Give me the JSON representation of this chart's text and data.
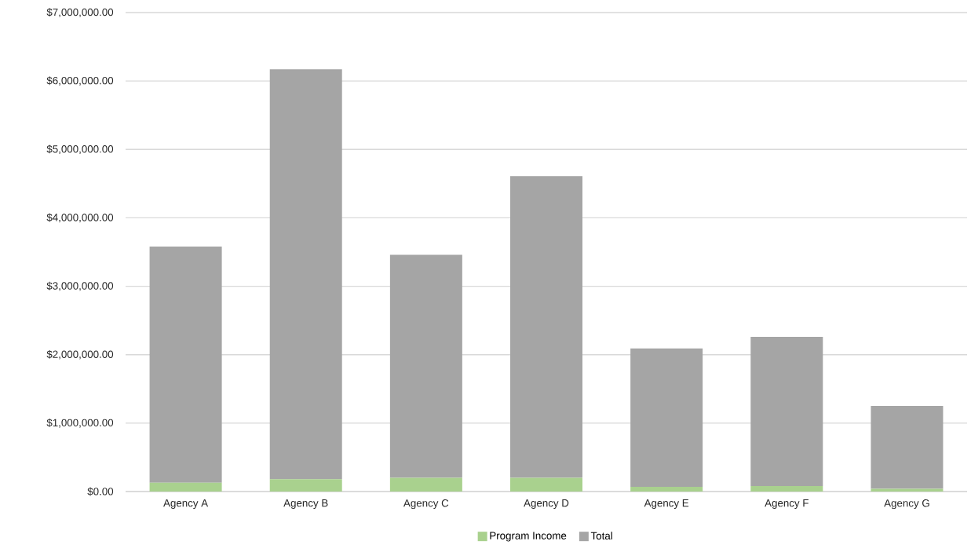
{
  "chart_data": {
    "type": "bar",
    "stacked": true,
    "grid": "y",
    "legend": "bottom",
    "categories": [
      "Agency A",
      "Agency B",
      "Agency C",
      "Agency D",
      "Agency E",
      "Agency F",
      "Agency G"
    ],
    "series": [
      {
        "name": "Program Income",
        "color": "#a9d18e",
        "values": [
          130000,
          180000,
          200000,
          200000,
          70000,
          80000,
          40000
        ]
      },
      {
        "name": "Total",
        "color": "#a5a5a5",
        "values": [
          3450000,
          5990000,
          3260000,
          4410000,
          2020000,
          2180000,
          1210000
        ]
      }
    ],
    "ylim": [
      0,
      7000000
    ],
    "yticks": [
      {
        "value": 0,
        "label": "$0.00"
      },
      {
        "value": 1000000,
        "label": "$1,000,000.00"
      },
      {
        "value": 2000000,
        "label": "$2,000,000.00"
      },
      {
        "value": 3000000,
        "label": "$3,000,000.00"
      },
      {
        "value": 4000000,
        "label": "$4,000,000.00"
      },
      {
        "value": 5000000,
        "label": "$5,000,000.00"
      },
      {
        "value": 6000000,
        "label": "$6,000,000.00"
      },
      {
        "value": 7000000,
        "label": "$7,000,000.00"
      }
    ]
  }
}
